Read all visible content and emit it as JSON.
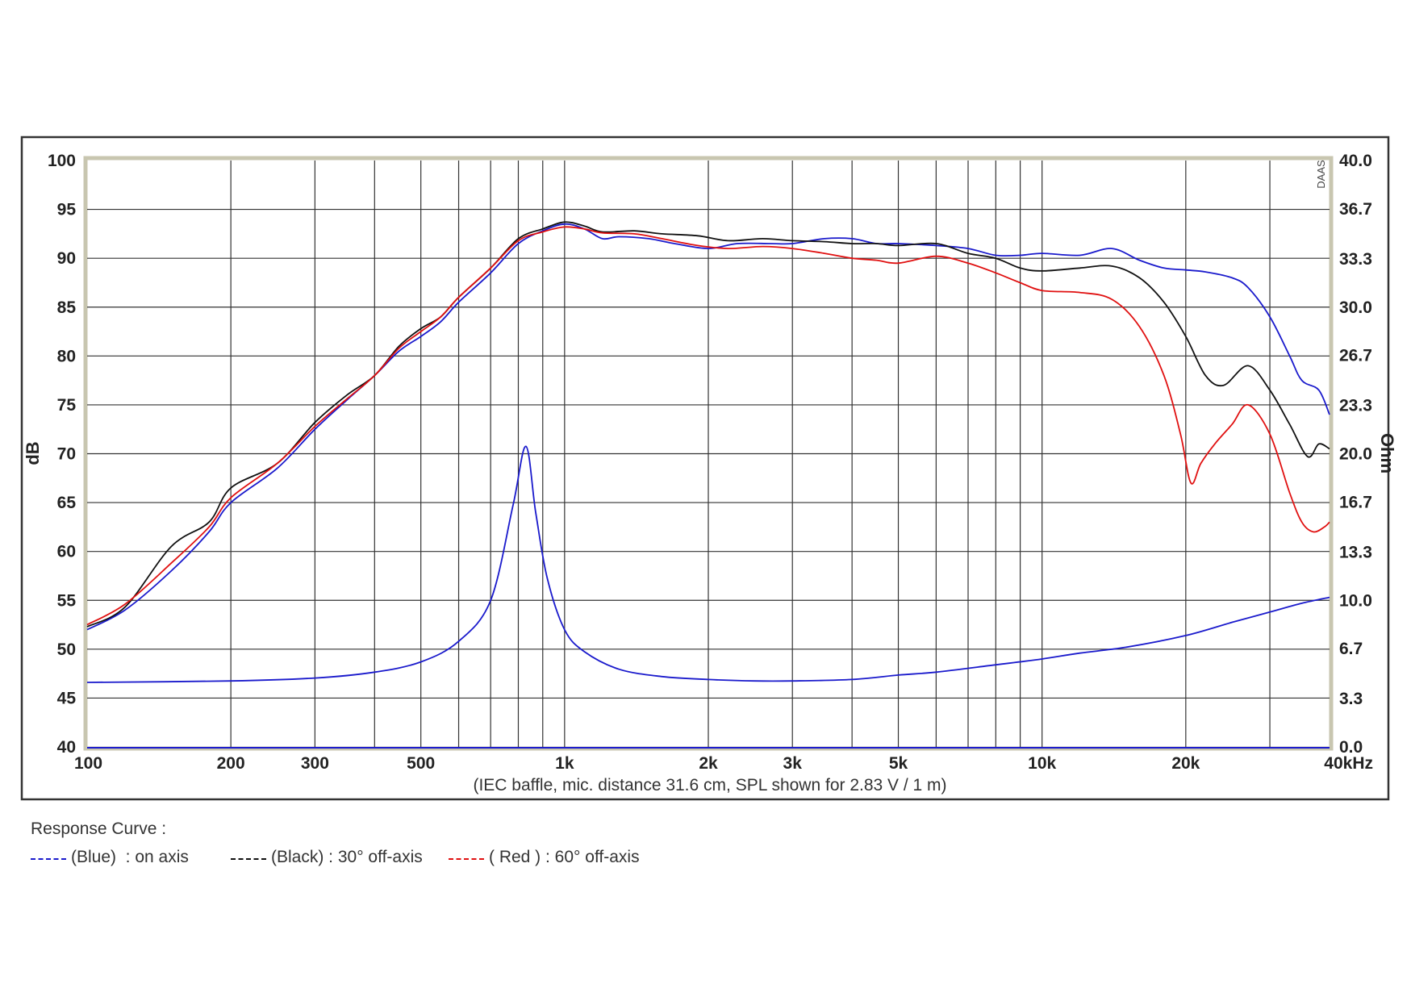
{
  "colors": {
    "on_axis": "#1a1acc",
    "off30": "#111111",
    "off60": "#e01010",
    "impedance": "#1a1acc",
    "grid": "#333333",
    "frame": "#c8c6b0"
  },
  "legend": {
    "title": "Response Curve :",
    "items": [
      {
        "label": "(Blue)  : on axis",
        "color": "#1a1acc"
      },
      {
        "label": "(Black) : 30° off-axis",
        "color": "#111111"
      },
      {
        "label": "( Red ) : 60° off-axis",
        "color": "#e01010"
      }
    ]
  },
  "chart_data": {
    "type": "line",
    "caption": "(IEC baffle, mic. distance 31.6 cm, SPL shown for 2.83 V / 1 m)",
    "watermark": "DAAS",
    "xlabel": "kHz",
    "ylabel": "dB",
    "y2label": "Ohm",
    "xscale": "log",
    "xlim": [
      100,
      40000
    ],
    "ylim": [
      40,
      100
    ],
    "y2lim": [
      0,
      40
    ],
    "grid": true,
    "x_ticks": [
      {
        "value": 100,
        "label": "100"
      },
      {
        "value": 200,
        "label": "200"
      },
      {
        "value": 300,
        "label": "300"
      },
      {
        "value": 500,
        "label": "500"
      },
      {
        "value": 1000,
        "label": "1k"
      },
      {
        "value": 2000,
        "label": "2k"
      },
      {
        "value": 3000,
        "label": "3k"
      },
      {
        "value": 5000,
        "label": "5k"
      },
      {
        "value": 10000,
        "label": "10k"
      },
      {
        "value": 20000,
        "label": "20k"
      },
      {
        "value": 40000,
        "label": "40kHz"
      }
    ],
    "y_ticks": [
      100,
      95,
      90,
      85,
      80,
      75,
      70,
      65,
      60,
      55,
      50,
      45,
      40
    ],
    "y2_ticks": [
      "40.0",
      "36.7",
      "33.3",
      "30.0",
      "26.7",
      "23.3",
      "20.0",
      "16.7",
      "13.3",
      "10.0",
      "6.7",
      "3.3",
      "0.0"
    ],
    "series": [
      {
        "name": "(Blue)  : on axis",
        "axis": "left",
        "color": "#1a1acc",
        "points": [
          [
            100,
            52
          ],
          [
            120,
            54
          ],
          [
            150,
            58
          ],
          [
            180,
            62
          ],
          [
            200,
            65
          ],
          [
            250,
            68.5
          ],
          [
            300,
            72.5
          ],
          [
            350,
            75.5
          ],
          [
            400,
            78
          ],
          [
            450,
            80.5
          ],
          [
            500,
            82
          ],
          [
            550,
            83.5
          ],
          [
            600,
            85.5
          ],
          [
            700,
            88.5
          ],
          [
            800,
            91.5
          ],
          [
            900,
            92.8
          ],
          [
            1000,
            93.5
          ],
          [
            1100,
            93
          ],
          [
            1200,
            92
          ],
          [
            1300,
            92.2
          ],
          [
            1500,
            92
          ],
          [
            1700,
            91.5
          ],
          [
            2000,
            91
          ],
          [
            2300,
            91.5
          ],
          [
            2700,
            91.5
          ],
          [
            3000,
            91.5
          ],
          [
            3500,
            92
          ],
          [
            4000,
            92
          ],
          [
            4500,
            91.5
          ],
          [
            5000,
            91.5
          ],
          [
            6000,
            91.3
          ],
          [
            7000,
            91
          ],
          [
            8000,
            90.3
          ],
          [
            9000,
            90.3
          ],
          [
            10000,
            90.5
          ],
          [
            12000,
            90.3
          ],
          [
            14000,
            91
          ],
          [
            16000,
            89.8
          ],
          [
            18000,
            89
          ],
          [
            20000,
            88.8
          ],
          [
            22000,
            88.6
          ],
          [
            25000,
            88
          ],
          [
            27000,
            87
          ],
          [
            30000,
            84
          ],
          [
            33000,
            80
          ],
          [
            35000,
            77.5
          ],
          [
            38000,
            76.5
          ],
          [
            40000,
            74
          ]
        ]
      },
      {
        "name": "(Black) : 30° off-axis",
        "axis": "left",
        "color": "#111111",
        "points": [
          [
            100,
            52.3
          ],
          [
            120,
            54.3
          ],
          [
            150,
            60.5
          ],
          [
            180,
            63
          ],
          [
            200,
            66.5
          ],
          [
            250,
            69
          ],
          [
            300,
            73.2
          ],
          [
            350,
            76
          ],
          [
            400,
            78
          ],
          [
            450,
            81
          ],
          [
            500,
            82.8
          ],
          [
            550,
            84
          ],
          [
            600,
            86
          ],
          [
            700,
            89
          ],
          [
            800,
            92
          ],
          [
            900,
            93
          ],
          [
            1000,
            93.7
          ],
          [
            1100,
            93.3
          ],
          [
            1200,
            92.7
          ],
          [
            1400,
            92.8
          ],
          [
            1600,
            92.5
          ],
          [
            1900,
            92.3
          ],
          [
            2200,
            91.8
          ],
          [
            2600,
            92
          ],
          [
            3000,
            91.8
          ],
          [
            3500,
            91.7
          ],
          [
            4000,
            91.5
          ],
          [
            4500,
            91.5
          ],
          [
            5000,
            91.3
          ],
          [
            6000,
            91.5
          ],
          [
            7000,
            90.5
          ],
          [
            8000,
            90
          ],
          [
            9000,
            89
          ],
          [
            10000,
            88.7
          ],
          [
            12000,
            89
          ],
          [
            14000,
            89.2
          ],
          [
            16000,
            88
          ],
          [
            18000,
            85.5
          ],
          [
            20000,
            82
          ],
          [
            22000,
            78
          ],
          [
            24000,
            77
          ],
          [
            27000,
            79
          ],
          [
            30000,
            76.5
          ],
          [
            33000,
            73
          ],
          [
            36000,
            69.7
          ],
          [
            38000,
            71
          ],
          [
            40000,
            70.5
          ]
        ]
      },
      {
        "name": "( Red ) : 60° off-axis",
        "axis": "left",
        "color": "#e01010",
        "points": [
          [
            100,
            52.5
          ],
          [
            120,
            54.6
          ],
          [
            150,
            58.8
          ],
          [
            180,
            62.5
          ],
          [
            200,
            65.5
          ],
          [
            250,
            69
          ],
          [
            300,
            72.8
          ],
          [
            350,
            75.6
          ],
          [
            400,
            78
          ],
          [
            450,
            80.8
          ],
          [
            500,
            82.5
          ],
          [
            550,
            84
          ],
          [
            600,
            86
          ],
          [
            700,
            89
          ],
          [
            800,
            91.8
          ],
          [
            900,
            92.7
          ],
          [
            1000,
            93.2
          ],
          [
            1100,
            93
          ],
          [
            1200,
            92.6
          ],
          [
            1400,
            92.5
          ],
          [
            1600,
            92
          ],
          [
            1900,
            91.3
          ],
          [
            2200,
            91
          ],
          [
            2600,
            91.2
          ],
          [
            3000,
            91
          ],
          [
            3500,
            90.5
          ],
          [
            4000,
            90
          ],
          [
            4500,
            89.8
          ],
          [
            5000,
            89.5
          ],
          [
            6000,
            90.2
          ],
          [
            7000,
            89.5
          ],
          [
            8000,
            88.5
          ],
          [
            9000,
            87.5
          ],
          [
            10000,
            86.7
          ],
          [
            12000,
            86.5
          ],
          [
            14000,
            85.8
          ],
          [
            16000,
            83
          ],
          [
            18000,
            78
          ],
          [
            19500,
            72
          ],
          [
            20500,
            67
          ],
          [
            21500,
            69
          ],
          [
            23000,
            71
          ],
          [
            25000,
            73
          ],
          [
            27000,
            75
          ],
          [
            30000,
            72
          ],
          [
            33000,
            66
          ],
          [
            35000,
            63
          ],
          [
            37000,
            62
          ],
          [
            39000,
            62.5
          ],
          [
            40000,
            63
          ]
        ]
      },
      {
        "name": "Impedance",
        "axis": "right",
        "color": "#1a1acc",
        "points": [
          [
            100,
            4.4
          ],
          [
            200,
            4.5
          ],
          [
            300,
            4.7
          ],
          [
            400,
            5.1
          ],
          [
            500,
            5.8
          ],
          [
            600,
            7.2
          ],
          [
            700,
            10
          ],
          [
            780,
            16.5
          ],
          [
            830,
            20.5
          ],
          [
            870,
            16
          ],
          [
            920,
            11.5
          ],
          [
            1000,
            8
          ],
          [
            1100,
            6.5
          ],
          [
            1300,
            5.3
          ],
          [
            1600,
            4.8
          ],
          [
            2000,
            4.6
          ],
          [
            2500,
            4.5
          ],
          [
            3000,
            4.5
          ],
          [
            4000,
            4.6
          ],
          [
            5000,
            4.9
          ],
          [
            6000,
            5.1
          ],
          [
            8000,
            5.6
          ],
          [
            10000,
            6
          ],
          [
            12000,
            6.4
          ],
          [
            15000,
            6.8
          ],
          [
            20000,
            7.6
          ],
          [
            25000,
            8.5
          ],
          [
            30000,
            9.2
          ],
          [
            35000,
            9.8
          ],
          [
            40000,
            10.2
          ]
        ]
      }
    ]
  }
}
